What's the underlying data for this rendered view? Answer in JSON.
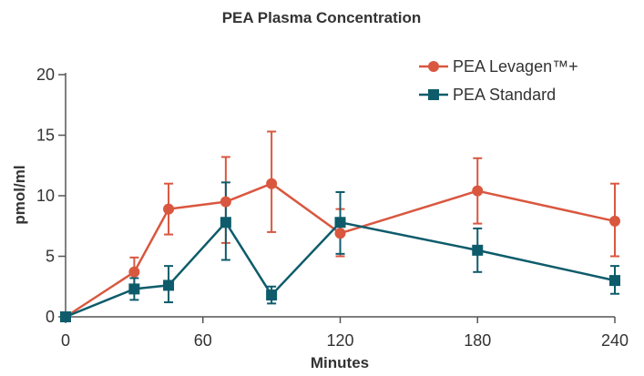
{
  "chart_data": {
    "type": "line",
    "title": "PEA Plasma Concentration",
    "xlabel": "Minutes",
    "ylabel": "pmol/ml",
    "xlim": [
      0,
      240
    ],
    "ylim": [
      0,
      20
    ],
    "x_ticks": [
      "0",
      "60",
      "120",
      "180",
      "240"
    ],
    "y_ticks": [
      "0",
      "5",
      "10",
      "15",
      "20"
    ],
    "grid": false,
    "legend_position": "top-right",
    "series": [
      {
        "name": "PEA Levagen™+",
        "color": "#d9573f",
        "marker": "circle",
        "x": [
          0,
          30,
          45,
          70,
          90,
          120,
          180,
          240
        ],
        "y": [
          0,
          3.7,
          8.9,
          9.5,
          11.0,
          6.9,
          10.4,
          7.9
        ],
        "err_low": [
          0,
          2.3,
          6.8,
          6.1,
          7.0,
          5.0,
          7.7,
          5.0
        ],
        "err_high": [
          0,
          4.9,
          11.0,
          13.2,
          15.3,
          8.9,
          13.1,
          11.0
        ]
      },
      {
        "name": "PEA Standard",
        "color": "#0e5c6b",
        "marker": "square",
        "x": [
          0,
          30,
          45,
          70,
          90,
          120,
          180,
          240
        ],
        "y": [
          0,
          2.3,
          2.6,
          7.8,
          1.8,
          7.8,
          5.5,
          3.0
        ],
        "err_low": [
          0,
          1.4,
          1.2,
          4.7,
          1.1,
          5.2,
          3.7,
          1.9
        ],
        "err_high": [
          0,
          3.2,
          4.2,
          11.1,
          2.5,
          10.3,
          7.3,
          4.2
        ]
      }
    ]
  }
}
